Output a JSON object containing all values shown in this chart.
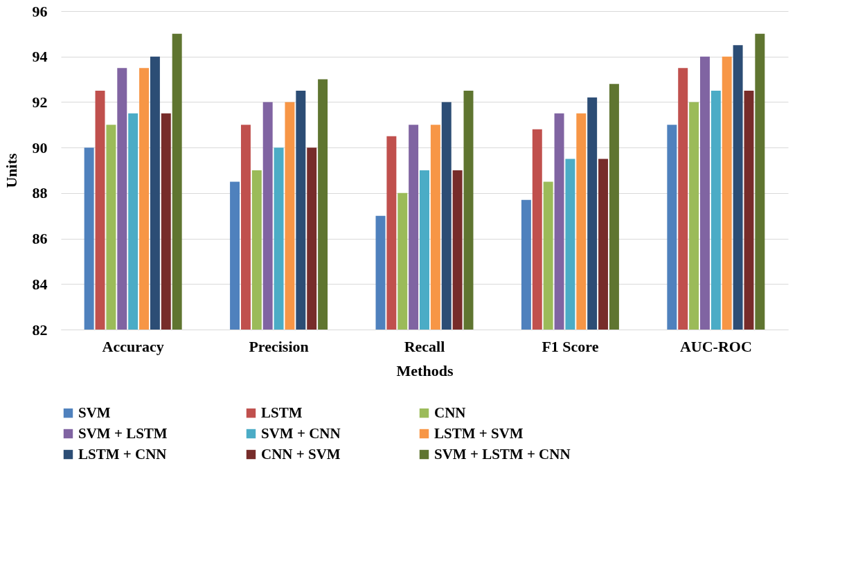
{
  "chart_data": {
    "type": "bar",
    "xlabel": "Methods",
    "ylabel": "Units",
    "categories": [
      "Accuracy",
      "Precision",
      "Recall",
      "F1 Score",
      "AUC-ROC"
    ],
    "series": [
      {
        "name": "SVM",
        "color": "#4f81bd",
        "values": [
          90,
          88.5,
          87,
          87.7,
          91
        ]
      },
      {
        "name": "LSTM",
        "color": "#c0504d",
        "values": [
          92.5,
          91,
          90.5,
          90.8,
          93.5
        ]
      },
      {
        "name": "CNN",
        "color": "#9bbb59",
        "values": [
          91,
          89,
          88,
          88.5,
          92
        ]
      },
      {
        "name": "SVM + LSTM",
        "color": "#8064a2",
        "values": [
          93.5,
          92,
          91,
          91.5,
          94
        ]
      },
      {
        "name": "SVM + CNN",
        "color": "#4bacc6",
        "values": [
          91.5,
          90,
          89,
          89.5,
          92.5
        ]
      },
      {
        "name": "LSTM + SVM",
        "color": "#f79646",
        "values": [
          93.5,
          92,
          91,
          91.5,
          94
        ]
      },
      {
        "name": "LSTM + CNN",
        "color": "#2c4d75",
        "values": [
          94,
          92.5,
          92,
          92.2,
          94.5
        ]
      },
      {
        "name": "CNN + SVM",
        "color": "#772c2a",
        "values": [
          91.5,
          90,
          89,
          89.5,
          92.5
        ]
      },
      {
        "name": "SVM + LSTM + CNN",
        "color": "#5f7530",
        "values": [
          95,
          93,
          92.5,
          92.8,
          95
        ]
      }
    ],
    "ylim": [
      82,
      96
    ],
    "yticks": [
      82,
      84,
      86,
      88,
      90,
      92,
      94,
      96
    ],
    "grid": "y",
    "legend": "bottom"
  }
}
